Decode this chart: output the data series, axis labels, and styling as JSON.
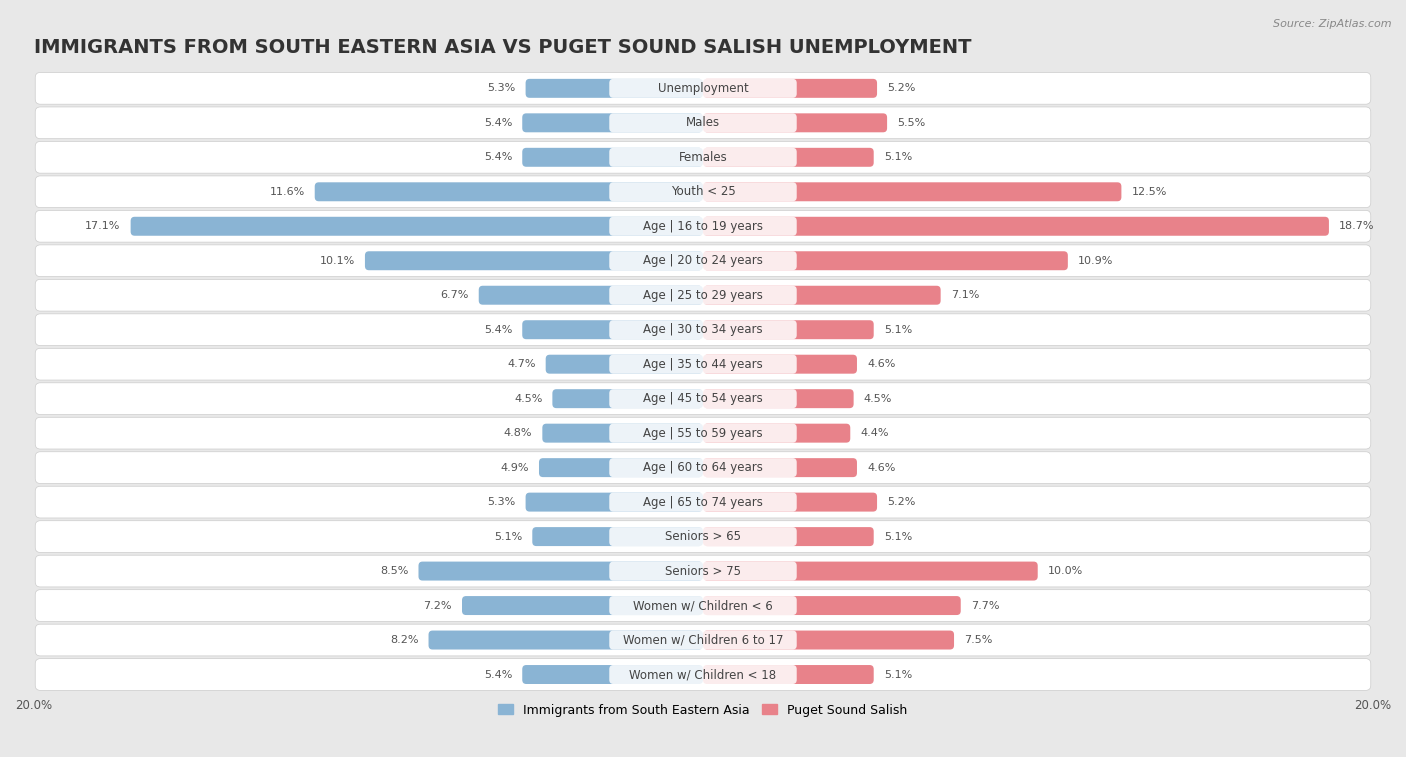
{
  "title": "IMMIGRANTS FROM SOUTH EASTERN ASIA VS PUGET SOUND SALISH UNEMPLOYMENT",
  "source": "Source: ZipAtlas.com",
  "categories": [
    "Unemployment",
    "Males",
    "Females",
    "Youth < 25",
    "Age | 16 to 19 years",
    "Age | 20 to 24 years",
    "Age | 25 to 29 years",
    "Age | 30 to 34 years",
    "Age | 35 to 44 years",
    "Age | 45 to 54 years",
    "Age | 55 to 59 years",
    "Age | 60 to 64 years",
    "Age | 65 to 74 years",
    "Seniors > 65",
    "Seniors > 75",
    "Women w/ Children < 6",
    "Women w/ Children 6 to 17",
    "Women w/ Children < 18"
  ],
  "left_values": [
    5.3,
    5.4,
    5.4,
    11.6,
    17.1,
    10.1,
    6.7,
    5.4,
    4.7,
    4.5,
    4.8,
    4.9,
    5.3,
    5.1,
    8.5,
    7.2,
    8.2,
    5.4
  ],
  "right_values": [
    5.2,
    5.5,
    5.1,
    12.5,
    18.7,
    10.9,
    7.1,
    5.1,
    4.6,
    4.5,
    4.4,
    4.6,
    5.2,
    5.1,
    10.0,
    7.7,
    7.5,
    5.1
  ],
  "left_color": "#8ab4d4",
  "right_color": "#e8828a",
  "left_label": "Immigrants from South Eastern Asia",
  "right_label": "Puget Sound Salish",
  "xlim": 20.0,
  "bg_color": "#e8e8e8",
  "row_bg_color": "#ffffff",
  "row_border_color": "#cccccc",
  "title_fontsize": 14,
  "label_fontsize": 8.5,
  "value_fontsize": 8,
  "source_fontsize": 8
}
